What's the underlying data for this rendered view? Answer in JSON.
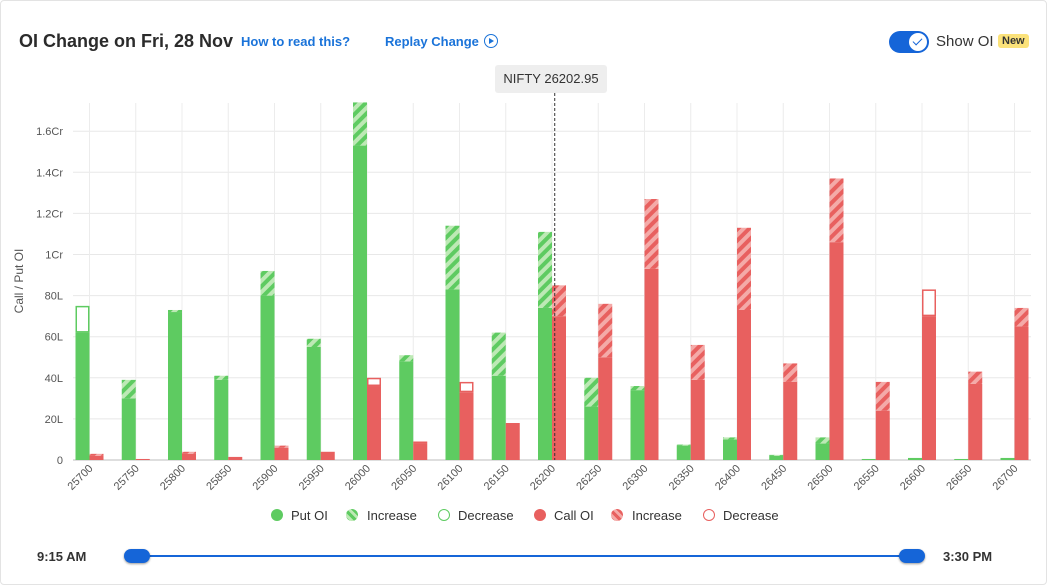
{
  "header": {
    "title": "OI Change on Fri, 28 Nov",
    "how_to_read": "How to read this?",
    "replay": "Replay Change",
    "show_oi": "Show OI",
    "new_badge": "New",
    "show_oi_enabled": true
  },
  "spot_label": "NIFTY 26202.95",
  "chart_data": {
    "type": "bar",
    "ylabel": "Call / Put OI",
    "ylim": [
      0,
      175
    ],
    "y_unit": "lakh",
    "yticks": [
      {
        "value": 0,
        "label": "0"
      },
      {
        "value": 20,
        "label": "20L"
      },
      {
        "value": 40,
        "label": "40L"
      },
      {
        "value": 60,
        "label": "60L"
      },
      {
        "value": 80,
        "label": "80L"
      },
      {
        "value": 100,
        "label": "1Cr"
      },
      {
        "value": 120,
        "label": "1.2Cr"
      },
      {
        "value": 140,
        "label": "1.4Cr"
      },
      {
        "value": 160,
        "label": "1.6Cr"
      }
    ],
    "categories": [
      "25700",
      "25750",
      "25800",
      "25850",
      "25900",
      "25950",
      "26000",
      "26050",
      "26100",
      "26150",
      "26200",
      "26250",
      "26300",
      "26350",
      "26400",
      "26450",
      "26500",
      "26550",
      "26600",
      "26650",
      "26700"
    ],
    "spot_value": 26202.95,
    "series": [
      {
        "name": "Put OI",
        "role": "put_base",
        "values": [
          62,
          30,
          72,
          39,
          80,
          55,
          153,
          48,
          83,
          41,
          74,
          26,
          34,
          7,
          10,
          2,
          8,
          0.5,
          1,
          0.5,
          1
        ]
      },
      {
        "name": "Increase",
        "role": "put_increase",
        "values": [
          0,
          9,
          1,
          2,
          12,
          4,
          21,
          3,
          31,
          21,
          37,
          14,
          2,
          0.5,
          1,
          0.5,
          3,
          0,
          0,
          0,
          0
        ]
      },
      {
        "name": "Decrease",
        "role": "put_decrease",
        "values": [
          13,
          0,
          0,
          0,
          0,
          0,
          0,
          0,
          0,
          0,
          0,
          0,
          0,
          0,
          0,
          0,
          0,
          0,
          0,
          0,
          0
        ]
      },
      {
        "name": "Call OI",
        "role": "call_base",
        "values": [
          2,
          0.5,
          3,
          1.5,
          6,
          4,
          36,
          8,
          33,
          18,
          70,
          50,
          93,
          39,
          73,
          38,
          106,
          24,
          70,
          37,
          65
        ]
      },
      {
        "name": "Increase",
        "role": "call_increase",
        "values": [
          1,
          0,
          1,
          0,
          1,
          0,
          0,
          0,
          0,
          0,
          15,
          26,
          34,
          17,
          40,
          9,
          31,
          14,
          0,
          6,
          9
        ]
      },
      {
        "name": "Decrease",
        "role": "call_decrease",
        "values": [
          0,
          0,
          0,
          0,
          0,
          0,
          4,
          1,
          5,
          0,
          0,
          0,
          0,
          0,
          0,
          0,
          0,
          0,
          13,
          0,
          0
        ]
      }
    ],
    "colors": {
      "put": "#5ecb61",
      "put_light": "#bde9b5",
      "call": "#e8605f",
      "call_light": "#f4aaa8"
    },
    "grid": true
  },
  "legend": [
    {
      "label": "Put OI",
      "style": "put-solid"
    },
    {
      "label": "Increase",
      "style": "put-hatch"
    },
    {
      "label": "Decrease",
      "style": "put-outline"
    },
    {
      "label": "Call OI",
      "style": "call-solid"
    },
    {
      "label": "Increase",
      "style": "call-hatch"
    },
    {
      "label": "Decrease",
      "style": "call-outline"
    }
  ],
  "slider": {
    "start_time": "9:15 AM",
    "end_time": "3:30 PM",
    "range": [
      0,
      1
    ]
  }
}
